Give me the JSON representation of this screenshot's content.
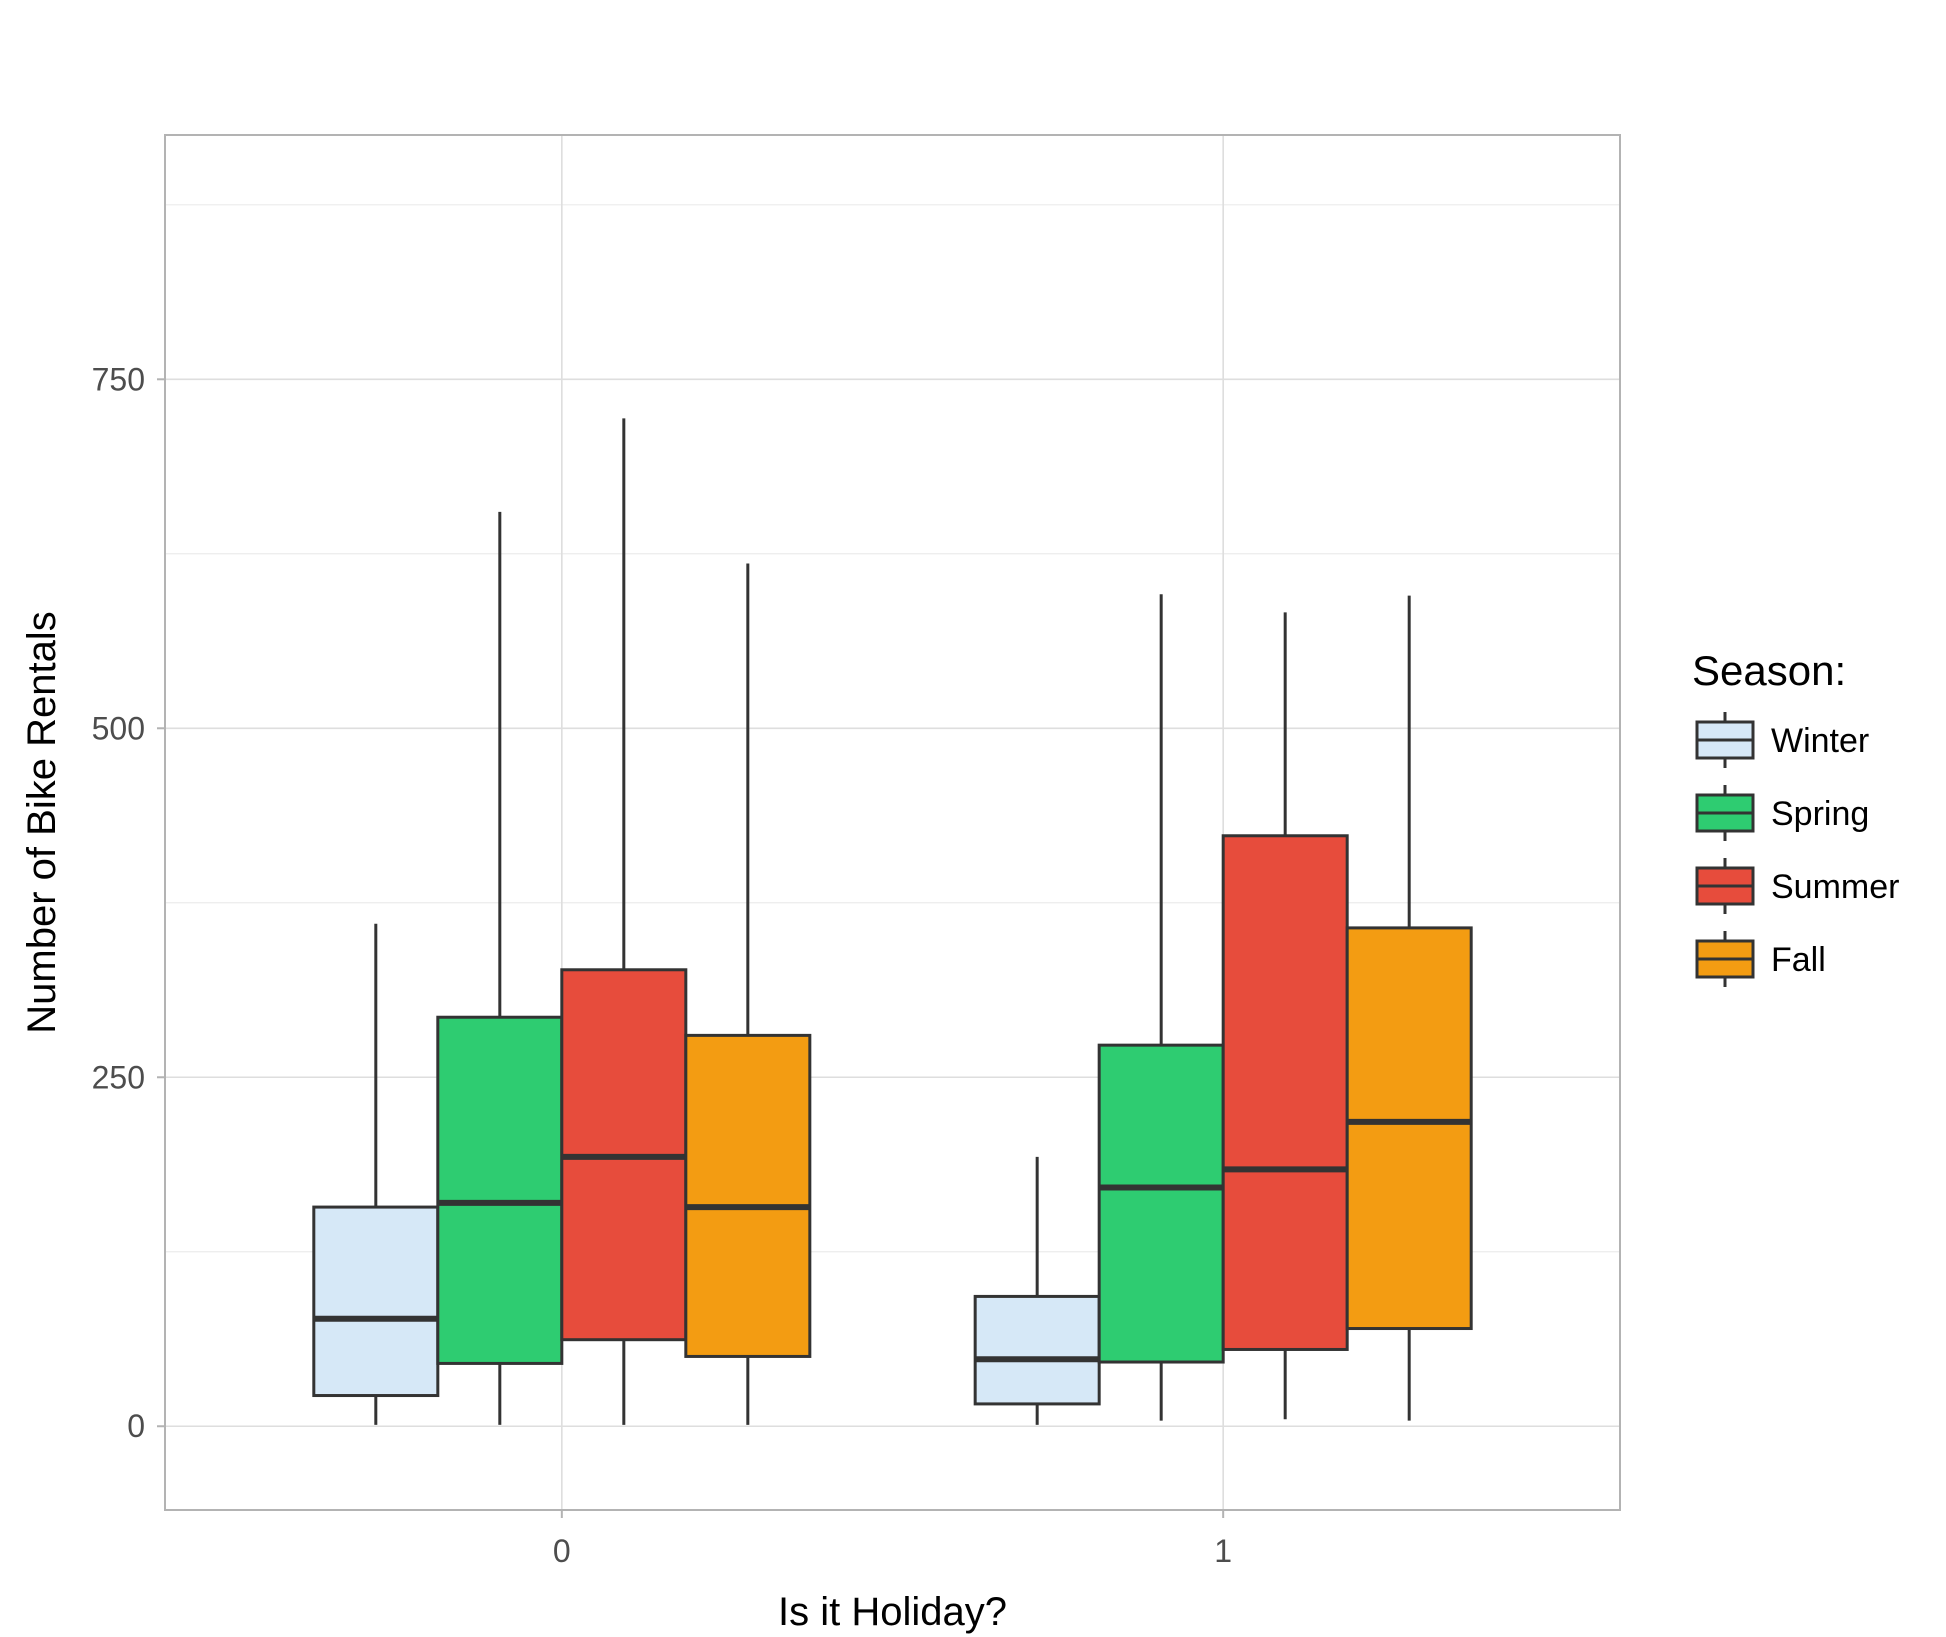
{
  "chart_data": {
    "type": "boxplot",
    "title": "",
    "xlabel": "Is it Holiday?",
    "ylabel": "Number of Bike Rentals",
    "categories": [
      "0",
      "1"
    ],
    "ylim": [
      -60,
      925
    ],
    "yticks": [
      0,
      250,
      500,
      750
    ],
    "ytick_labels": [
      "0",
      "250",
      "500",
      "750"
    ],
    "grid": true,
    "legend": {
      "title": "Season:",
      "position": "right"
    },
    "series": [
      {
        "name": "Winter",
        "color": "#d6e8f7",
        "boxes": [
          {
            "category": "0",
            "min": 1,
            "q1": 22,
            "median": 77,
            "q3": 157,
            "max": 360
          },
          {
            "category": "1",
            "min": 1,
            "q1": 16,
            "median": 48,
            "q3": 93,
            "max": 193
          }
        ]
      },
      {
        "name": "Spring",
        "color": "#2ecc71",
        "boxes": [
          {
            "category": "0",
            "min": 1,
            "q1": 45,
            "median": 160,
            "q3": 293,
            "max": 655
          },
          {
            "category": "1",
            "min": 4,
            "q1": 46,
            "median": 171,
            "q3": 273,
            "max": 596
          }
        ]
      },
      {
        "name": "Summer",
        "color": "#e74c3c",
        "boxes": [
          {
            "category": "0",
            "min": 1,
            "q1": 62,
            "median": 193,
            "q3": 327,
            "max": 722
          },
          {
            "category": "1",
            "min": 5,
            "q1": 55,
            "median": 184,
            "q3": 423,
            "max": 583
          }
        ]
      },
      {
        "name": "Fall",
        "color": "#f39c12",
        "boxes": [
          {
            "category": "0",
            "min": 1,
            "q1": 50,
            "median": 157,
            "q3": 280,
            "max": 618
          },
          {
            "category": "1",
            "min": 4,
            "q1": 70,
            "median": 218,
            "q3": 357,
            "max": 595
          }
        ]
      }
    ]
  }
}
